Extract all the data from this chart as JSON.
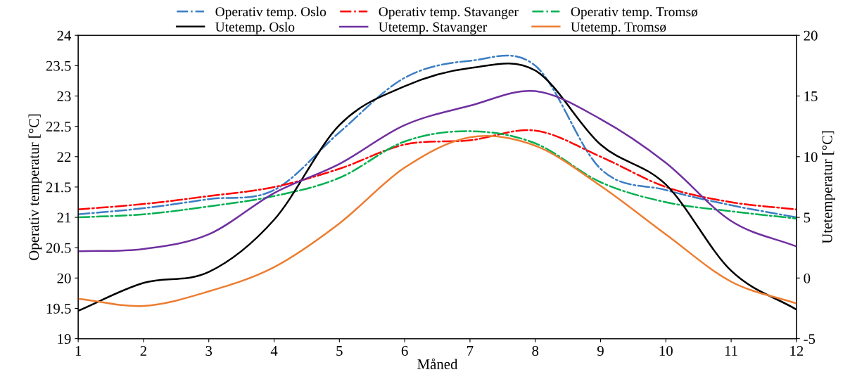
{
  "chart_data": {
    "type": "line",
    "xlabel": "Måned",
    "ylabel": "Operativ temperatur [°C]",
    "y2label": "Utetemperatur [°C]",
    "x": [
      1,
      2,
      3,
      4,
      5,
      6,
      7,
      8,
      9,
      10,
      11,
      12
    ],
    "xlim": [
      1,
      12
    ],
    "xticks": [
      1,
      2,
      3,
      4,
      5,
      6,
      7,
      8,
      9,
      10,
      11,
      12
    ],
    "ylim": [
      19,
      24
    ],
    "yticks": [
      19,
      19.5,
      20,
      20.5,
      21,
      21.5,
      22,
      22.5,
      23,
      23.5,
      24
    ],
    "y2lim": [
      -5,
      20
    ],
    "y2ticks": [
      -5,
      0,
      5,
      10,
      15,
      20
    ],
    "legend": "top",
    "grid": false,
    "marker": "none",
    "series": [
      {
        "name": "Operativ temp. Oslo",
        "color": "#3b7dc4",
        "line_style": "dashdot",
        "values": [
          21.05,
          21.15,
          21.3,
          21.45,
          22.4,
          23.3,
          23.58,
          23.5,
          21.8,
          21.45,
          21.2,
          21.0
        ]
      },
      {
        "name": "Operativ temp. Stavanger",
        "color": "#ff0000",
        "line_style": "dashdot",
        "values": [
          21.13,
          21.22,
          21.35,
          21.5,
          21.8,
          22.2,
          22.27,
          22.43,
          22.0,
          21.5,
          21.25,
          21.13
        ]
      },
      {
        "name": "Operativ temp. Tromsø",
        "color": "#00b050",
        "line_style": "dashdot",
        "values": [
          21.0,
          21.05,
          21.18,
          21.35,
          21.65,
          22.25,
          22.42,
          22.22,
          21.58,
          21.25,
          21.1,
          20.98
        ]
      },
      {
        "name": "Utetemp. Oslo",
        "color": "#000000",
        "line_style": "solid",
        "axis": "y2",
        "values": [
          -2.7,
          -0.4,
          0.5,
          4.8,
          12.6,
          15.8,
          17.3,
          17.1,
          11.0,
          7.7,
          0.6,
          -2.6
        ]
      },
      {
        "name": "Utetemp. Stavanger",
        "color": "#7030a0",
        "line_style": "solid",
        "axis": "y2",
        "values": [
          2.2,
          2.4,
          3.6,
          7.0,
          9.4,
          12.6,
          14.2,
          15.4,
          13.1,
          9.5,
          4.7,
          2.6
        ]
      },
      {
        "name": "Utetemp. Tromsø",
        "color": "#ed7d31",
        "line_style": "solid",
        "axis": "y2",
        "values": [
          -1.7,
          -2.3,
          -1.1,
          0.9,
          4.5,
          9.1,
          11.6,
          10.9,
          7.6,
          3.6,
          -0.3,
          -2.1
        ]
      }
    ]
  }
}
